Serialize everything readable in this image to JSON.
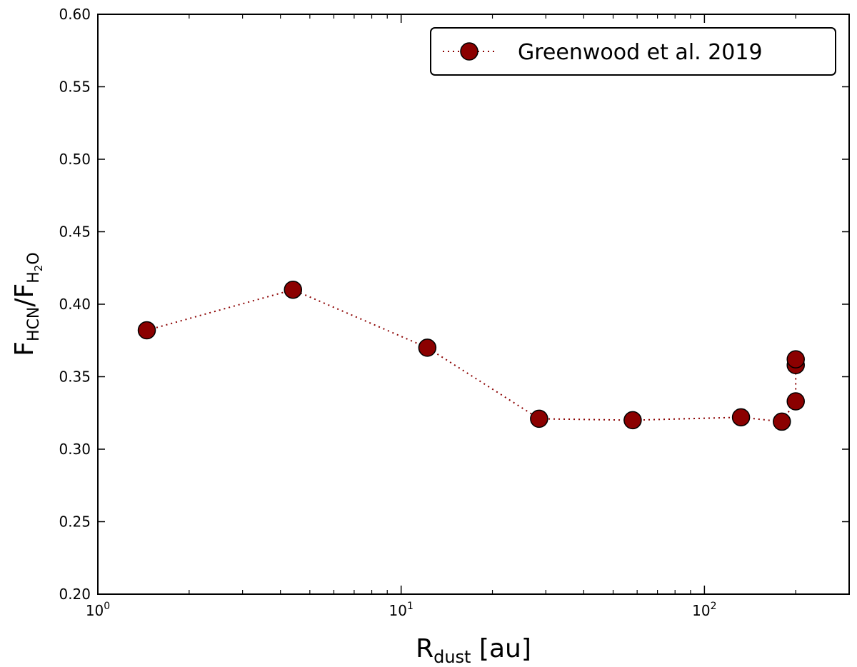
{
  "chart_data": {
    "type": "line",
    "title": "",
    "xscale": "log",
    "xlim": [
      1,
      300
    ],
    "ylim": [
      0.2,
      0.6
    ],
    "xlabel": {
      "main": "R",
      "sub": "dust",
      "suffix": "[au]"
    },
    "ylabel": {
      "num_main": "F",
      "num_sub": "HCN",
      "slash": "/",
      "den_main": "F",
      "den_sub": "H",
      "den_sub2": "2",
      "den_sub3": "O"
    },
    "x_ticks": [
      {
        "value": 1,
        "base": "10",
        "exp": "0"
      },
      {
        "value": 10,
        "base": "10",
        "exp": "1"
      },
      {
        "value": 100,
        "base": "10",
        "exp": "2"
      }
    ],
    "y_ticks": [
      "0.20",
      "0.25",
      "0.30",
      "0.35",
      "0.40",
      "0.45",
      "0.50",
      "0.55",
      "0.60"
    ],
    "grid": false,
    "legend": {
      "position": "top-right"
    },
    "series": [
      {
        "name": "Greenwood et al. 2019",
        "color": "#8b0000",
        "line_style": "dotted",
        "marker": "circle",
        "x": [
          1.45,
          4.4,
          12.2,
          28.5,
          58,
          132,
          180,
          200,
          200,
          200
        ],
        "y": [
          0.382,
          0.41,
          0.37,
          0.321,
          0.32,
          0.322,
          0.319,
          0.333,
          0.358,
          0.362
        ]
      }
    ]
  }
}
